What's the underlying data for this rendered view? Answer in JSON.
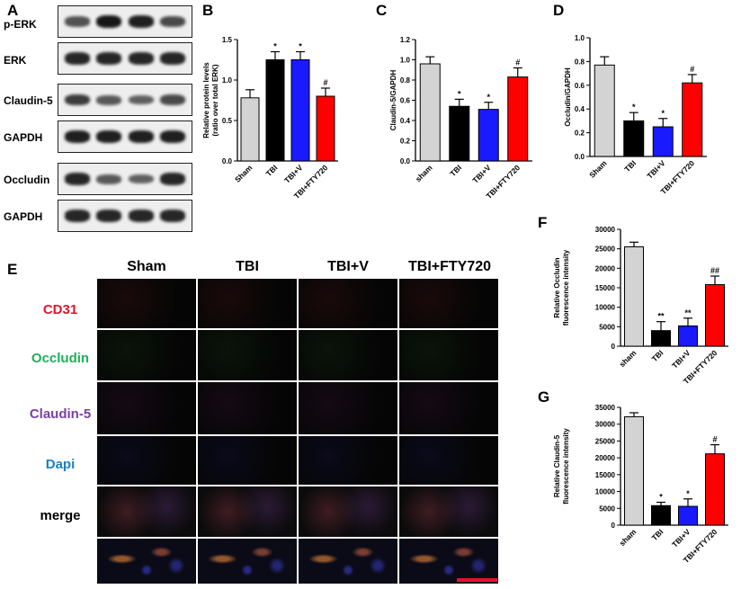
{
  "panel_letters": [
    "A",
    "B",
    "C",
    "D",
    "E",
    "F",
    "G"
  ],
  "blot": {
    "bands": [
      "p-ERK",
      "ERK",
      "Claudin-5",
      "GAPDH",
      "Occludin",
      "GAPDH"
    ],
    "intensities": [
      [
        0.55,
        0.95,
        0.9,
        0.6
      ],
      [
        0.85,
        0.85,
        0.85,
        0.85
      ],
      [
        0.7,
        0.5,
        0.45,
        0.6
      ],
      [
        0.9,
        0.9,
        0.9,
        0.9
      ],
      [
        0.85,
        0.5,
        0.45,
        0.85
      ],
      [
        0.85,
        0.85,
        0.85,
        0.85
      ]
    ]
  },
  "colors": {
    "sham": "#d3d3d3",
    "tbi": "#000000",
    "tbi_v": "#1a1aff",
    "tbi_fty": "#ff0000",
    "scale_bar": "#e8112d"
  },
  "if_panel": {
    "columns": [
      "Sham",
      "TBI",
      "TBI+V",
      "TBI+FTY720"
    ],
    "rows": [
      {
        "label": "CD31",
        "color": "#e8112d"
      },
      {
        "label": "Occludin",
        "color": "#1fae5a"
      },
      {
        "label": "Claudin-5",
        "color": "#7b3fa0"
      },
      {
        "label": "Dapi",
        "color": "#1a7fc4"
      },
      {
        "label": "merge",
        "color": "#000000"
      }
    ]
  },
  "chart_data": [
    {
      "type": "bar",
      "panel": "B",
      "categories": [
        "Sham",
        "TBI",
        "TBI+V",
        "TBI+FTY720"
      ],
      "values": [
        0.78,
        1.25,
        1.25,
        0.8
      ],
      "errors": [
        0.1,
        0.1,
        0.1,
        0.1
      ],
      "annotations": [
        "",
        "*",
        "*",
        "#"
      ],
      "ylabel_lines": [
        "Relative protein levels",
        "(ratio over total ERK)"
      ],
      "ylim": [
        0,
        1.5
      ],
      "yticks": [
        0.0,
        0.5,
        1.0,
        1.5
      ],
      "ytick_labels": [
        "0.0",
        "0.5",
        "1.0",
        "1.5"
      ]
    },
    {
      "type": "bar",
      "panel": "C",
      "categories": [
        "sham",
        "TBI",
        "TBI+V",
        "TBI+FTY720"
      ],
      "values": [
        0.96,
        0.54,
        0.51,
        0.83
      ],
      "errors": [
        0.07,
        0.07,
        0.07,
        0.09
      ],
      "annotations": [
        "",
        "*",
        "*",
        "#"
      ],
      "ylabel_lines": [
        "Claudin-5/GAPDH"
      ],
      "ylim": [
        0,
        1.2
      ],
      "yticks": [
        0.0,
        0.2,
        0.4,
        0.6,
        0.8,
        1.0,
        1.2
      ],
      "ytick_labels": [
        "0.0",
        "0.2",
        "0.4",
        "0.6",
        "0.8",
        "1.0",
        "1.2"
      ]
    },
    {
      "type": "bar",
      "panel": "D",
      "categories": [
        "Sham",
        "TBI",
        "TBI+V",
        "TBI+FTY720"
      ],
      "values": [
        0.77,
        0.3,
        0.25,
        0.62
      ],
      "errors": [
        0.07,
        0.07,
        0.07,
        0.07
      ],
      "annotations": [
        "",
        "*",
        "*",
        "#"
      ],
      "ylabel_lines": [
        "Occludin/GAPDH"
      ],
      "ylim": [
        0,
        1.0
      ],
      "yticks": [
        0.0,
        0.2,
        0.4,
        0.6,
        0.8,
        1.0
      ],
      "ytick_labels": [
        "0.0",
        "0.2",
        "0.4",
        "0.6",
        "0.8",
        "1.0"
      ]
    },
    {
      "type": "bar",
      "panel": "F",
      "categories": [
        "sham",
        "TBI",
        "TBI+V",
        "TBI+FTY720"
      ],
      "values": [
        25500,
        4000,
        5200,
        15800
      ],
      "errors": [
        1200,
        2300,
        2000,
        2200
      ],
      "annotations": [
        "",
        "**",
        "**",
        "##"
      ],
      "ylabel_lines": [
        "Relative Occludin",
        "fluorescence intensity"
      ],
      "ylim": [
        0,
        30000
      ],
      "yticks": [
        0,
        5000,
        10000,
        15000,
        20000,
        25000,
        30000
      ],
      "ytick_labels": [
        "0",
        "5000",
        "10000",
        "15000",
        "20000",
        "25000",
        "30000"
      ]
    },
    {
      "type": "bar",
      "panel": "G",
      "categories": [
        "sham",
        "TBI",
        "TBI+V",
        "TBI+FTY720"
      ],
      "values": [
        32200,
        5800,
        5600,
        21200
      ],
      "errors": [
        1200,
        1000,
        2200,
        2700
      ],
      "annotations": [
        "",
        "*",
        "*",
        "#"
      ],
      "ylabel_lines": [
        "Relative Claudin-5",
        "fluorescence intensity"
      ],
      "ylim": [
        0,
        35000
      ],
      "yticks": [
        0,
        5000,
        10000,
        15000,
        20000,
        25000,
        30000,
        35000
      ],
      "ytick_labels": [
        "0",
        "5000",
        "10000",
        "15000",
        "20000",
        "25000",
        "30000",
        "35000"
      ]
    }
  ]
}
